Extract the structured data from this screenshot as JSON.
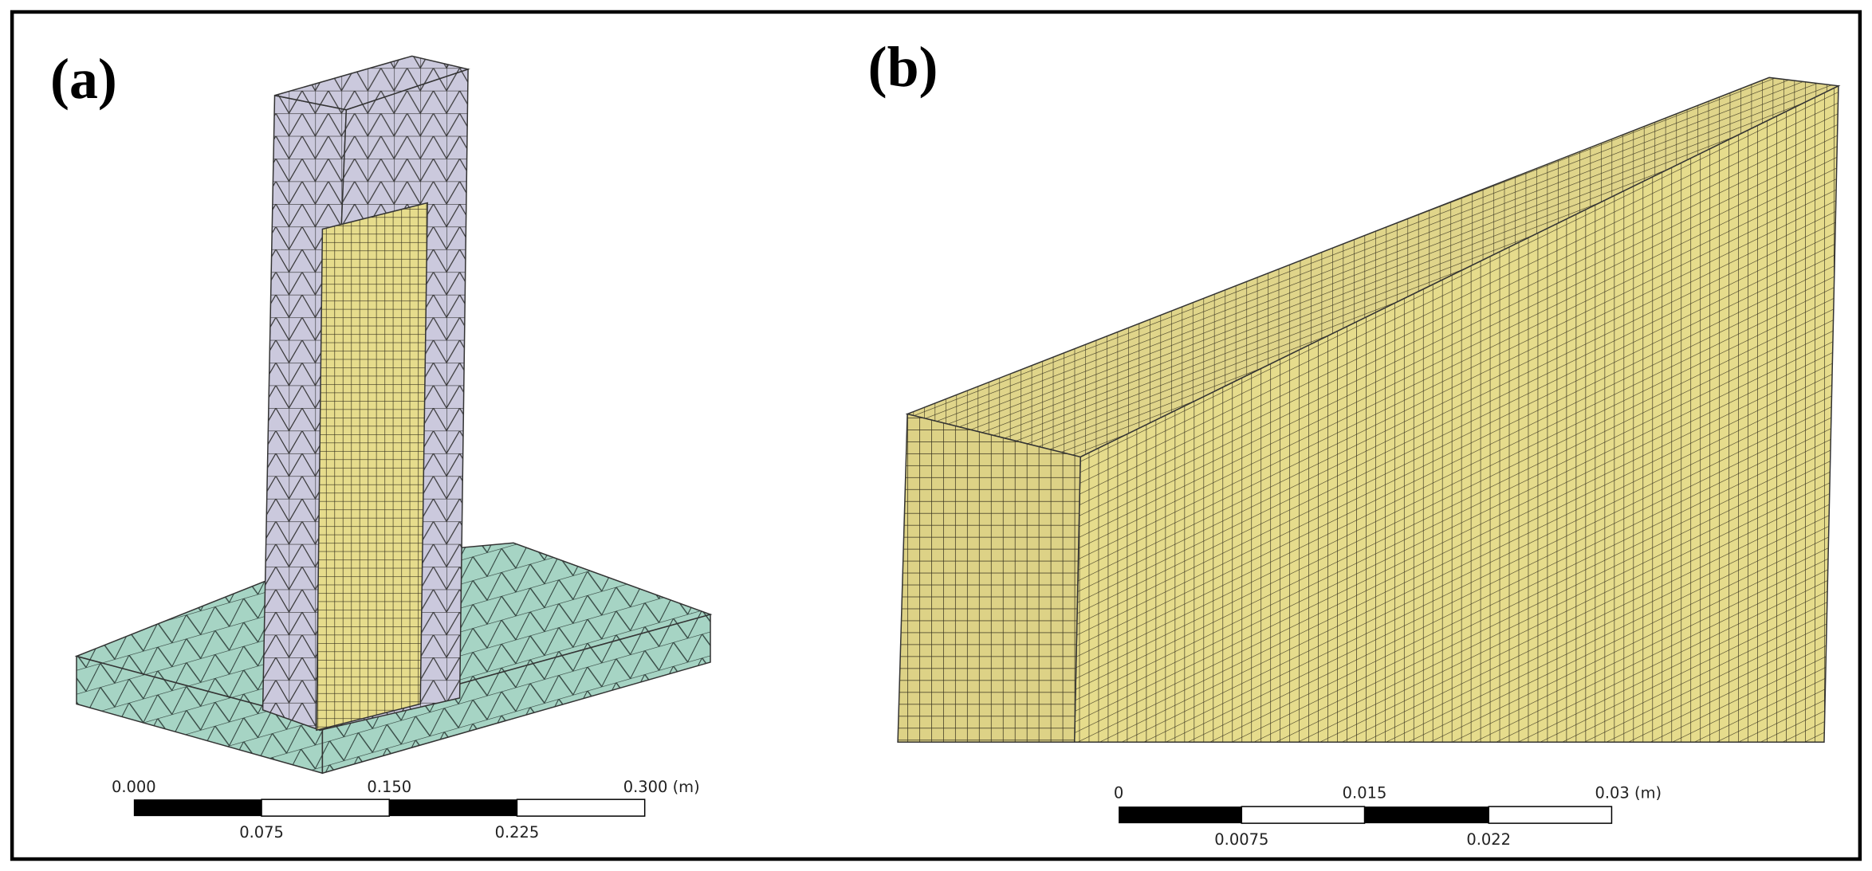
{
  "panels": [
    {
      "label": "(a)",
      "scale_bar": {
        "top_labels": [
          "0.000",
          "0.150",
          "0.300 (m)"
        ],
        "bottom_labels": [
          "0.075",
          "0.225"
        ]
      }
    },
    {
      "label": "(b)",
      "scale_bar": {
        "top_labels": [
          "0",
          "0.015",
          "0.03 (m)"
        ],
        "bottom_labels": [
          "0.0075",
          "0.022"
        ]
      }
    }
  ]
}
